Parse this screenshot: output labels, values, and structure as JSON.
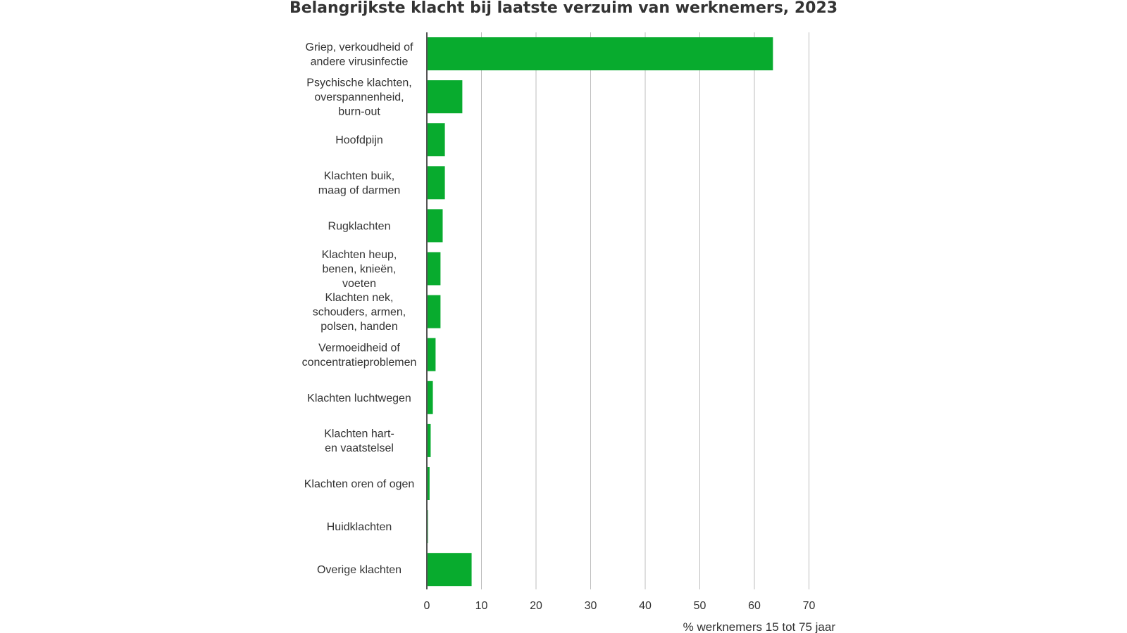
{
  "colors": {
    "bar": "#08ab2e",
    "grid": "#bdbdbd",
    "axis": "#555555",
    "text": "#333333"
  },
  "chart_data": {
    "type": "bar",
    "orientation": "horizontal",
    "title": "Belangrijkste klacht bij laatste verzuim van werknemers, 2023",
    "xlabel": "% werknemers 15 tot 75 jaar",
    "ylabel": "",
    "xlim": [
      0,
      70
    ],
    "xticks": [
      0,
      10,
      20,
      30,
      40,
      50,
      60,
      70
    ],
    "grid": true,
    "categories": [
      [
        "Griep, verkoudheid of",
        "andere virusinfectie"
      ],
      [
        "Psychische klachten,",
        "overspannenheid,",
        "burn-out"
      ],
      [
        "Hoofdpijn"
      ],
      [
        "Klachten buik,",
        "maag of darmen"
      ],
      [
        "Rugklachten"
      ],
      [
        "Klachten heup,",
        "benen, knieën,",
        "voeten"
      ],
      [
        "Klachten nek,",
        "schouders, armen,",
        "polsen, handen"
      ],
      [
        "Vermoeidheid of",
        "concentratieproblemen"
      ],
      [
        "Klachten luchtwegen"
      ],
      [
        "Klachten hart-",
        "en vaatstelsel"
      ],
      [
        "Klachten oren of ogen"
      ],
      [
        "Huidklachten"
      ],
      [
        "Overige klachten"
      ]
    ],
    "values": [
      63.4,
      6.5,
      3.3,
      3.3,
      2.9,
      2.5,
      2.5,
      1.6,
      1.1,
      0.7,
      0.5,
      0.2,
      8.2
    ]
  }
}
